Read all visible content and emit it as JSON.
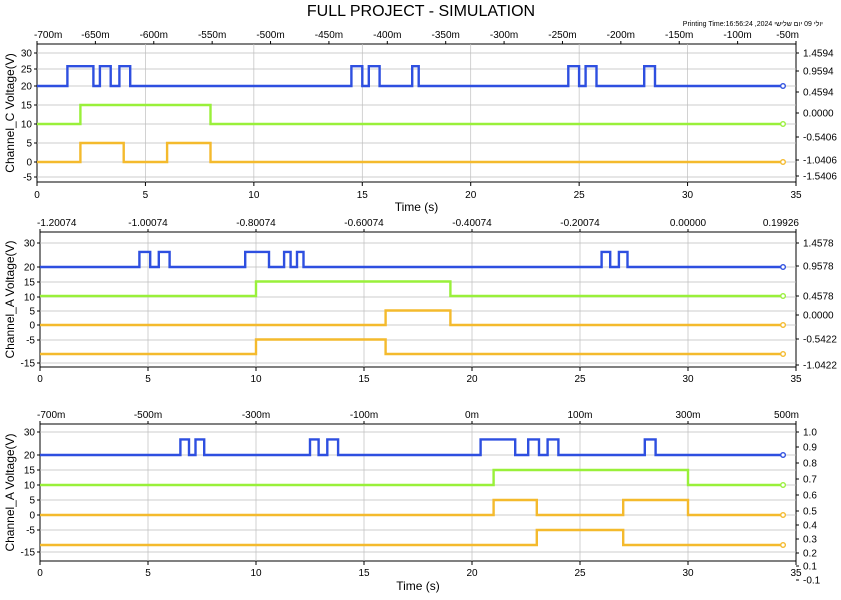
{
  "page": {
    "title": "FULL PROJECT - SIMULATION",
    "print_info": "Printing Time:16:56:24 ,2024 יולי 09 יום שלישי"
  },
  "colors": {
    "blue": "#2E4FE0",
    "green": "#99F03A",
    "orange": "#F4BA2D",
    "grid": "#BEBEBE",
    "frame": "#000000"
  },
  "chart_data": [
    {
      "type": "line",
      "subtype": "step",
      "ylabel": "Channel_C Voltage(V)",
      "xlabel": "Time (s)",
      "xlim": [
        0,
        35
      ],
      "x_ticks": [
        "0",
        "5",
        "10",
        "15",
        "20",
        "25",
        "30",
        "35"
      ],
      "ylim": [
        -8,
        32
      ],
      "y_ticks": [
        "30",
        "25",
        "20",
        "15",
        "10",
        "5",
        "0",
        "-5"
      ],
      "top_axis_ticks": [
        "-700m",
        "-650m",
        "-600m",
        "-550m",
        "-500m",
        "-450m",
        "-400m",
        "-350m",
        "-300m",
        "-250m",
        "-200m",
        "-150m",
        "-100m",
        "-50m"
      ],
      "right_axis_ticks": [
        "1.4594",
        "0.9594",
        "0.4594",
        "0.0000",
        "-0.5406",
        "-1.0406",
        "-1.5406"
      ],
      "grid": true,
      "series": [
        {
          "color": "blue",
          "points": [
            [
              0,
              20
            ],
            [
              1.4,
              20
            ],
            [
              1.4,
              25.2
            ],
            [
              2.6,
              25.2
            ],
            [
              2.6,
              20
            ],
            [
              2.9,
              20
            ],
            [
              2.9,
              25.2
            ],
            [
              3.4,
              25.2
            ],
            [
              3.4,
              20
            ],
            [
              3.8,
              20
            ],
            [
              3.8,
              25.2
            ],
            [
              4.3,
              25.2
            ],
            [
              4.3,
              20
            ],
            [
              14.5,
              20
            ],
            [
              14.5,
              25.2
            ],
            [
              15,
              25.2
            ],
            [
              15,
              20
            ],
            [
              15.3,
              20
            ],
            [
              15.3,
              25.2
            ],
            [
              15.8,
              25.2
            ],
            [
              15.8,
              20
            ],
            [
              17.3,
              20
            ],
            [
              17.3,
              25.2
            ],
            [
              17.6,
              25.2
            ],
            [
              17.6,
              20
            ],
            [
              24.5,
              20
            ],
            [
              24.5,
              25.2
            ],
            [
              25,
              25.2
            ],
            [
              25,
              20
            ],
            [
              25.3,
              20
            ],
            [
              25.3,
              25.2
            ],
            [
              25.8,
              25.2
            ],
            [
              25.8,
              20
            ],
            [
              28,
              20
            ],
            [
              28,
              25.2
            ],
            [
              28.5,
              25.2
            ],
            [
              28.5,
              20
            ],
            [
              34.4,
              20
            ]
          ]
        },
        {
          "color": "green",
          "points": [
            [
              0,
              10
            ],
            [
              2,
              10
            ],
            [
              2,
              15
            ],
            [
              8,
              15
            ],
            [
              8,
              10
            ],
            [
              34.4,
              10
            ]
          ]
        },
        {
          "color": "orange",
          "points": [
            [
              0,
              0
            ],
            [
              2,
              0
            ],
            [
              2,
              5
            ],
            [
              4,
              5
            ],
            [
              4,
              0
            ],
            [
              6,
              0
            ],
            [
              6,
              5
            ],
            [
              8,
              5
            ],
            [
              8,
              0
            ],
            [
              34.4,
              0
            ]
          ]
        }
      ]
    },
    {
      "type": "line",
      "subtype": "step",
      "ylabel": "Channel_A Voltage(V)",
      "xlabel": "",
      "xlim": [
        0,
        35
      ],
      "x_ticks": [
        "0",
        "5",
        "10",
        "15",
        "20",
        "25",
        "30",
        "35"
      ],
      "ylim": [
        -18,
        32
      ],
      "y_ticks": [
        "30",
        "20",
        "15",
        "10",
        "5",
        "0",
        "-5",
        "-15"
      ],
      "top_axis_ticks": [
        "-1.20074",
        "-1.00074",
        "-0.80074",
        "-0.60074",
        "-0.40074",
        "-0.20074",
        "0.00000",
        "0.19926"
      ],
      "right_axis_ticks": [
        "1.4578",
        "0.9578",
        "0.4578",
        "0.0000",
        "-0.5422",
        "-1.0422"
      ],
      "grid": true,
      "series": [
        {
          "color": "blue",
          "points": [
            [
              0,
              20
            ],
            [
              4.6,
              20
            ],
            [
              4.6,
              25.2
            ],
            [
              5.1,
              25.2
            ],
            [
              5.1,
              20
            ],
            [
              5.5,
              20
            ],
            [
              5.5,
              25.2
            ],
            [
              6,
              25.2
            ],
            [
              6,
              20
            ],
            [
              9.5,
              20
            ],
            [
              9.5,
              25.2
            ],
            [
              10.6,
              25.2
            ],
            [
              10.6,
              20
            ],
            [
              11.3,
              20
            ],
            [
              11.3,
              25.2
            ],
            [
              11.6,
              25.2
            ],
            [
              11.6,
              20
            ],
            [
              11.9,
              20
            ],
            [
              11.9,
              25.2
            ],
            [
              12.2,
              25.2
            ],
            [
              12.2,
              20
            ],
            [
              26,
              20
            ],
            [
              26,
              25.2
            ],
            [
              26.4,
              25.2
            ],
            [
              26.4,
              20
            ],
            [
              26.8,
              20
            ],
            [
              26.8,
              25.2
            ],
            [
              27.2,
              25.2
            ],
            [
              27.2,
              20
            ],
            [
              34.4,
              20
            ]
          ]
        },
        {
          "color": "green",
          "points": [
            [
              0,
              10
            ],
            [
              10,
              10
            ],
            [
              10,
              15
            ],
            [
              19,
              15
            ],
            [
              19,
              10
            ],
            [
              34.4,
              10
            ]
          ]
        },
        {
          "color": "orange",
          "points": [
            [
              0,
              0
            ],
            [
              16,
              0
            ],
            [
              16,
              5
            ],
            [
              19,
              5
            ],
            [
              19,
              0
            ],
            [
              34.4,
              0
            ]
          ]
        },
        {
          "color": "orange",
          "points": [
            [
              0,
              -10
            ],
            [
              10,
              -10
            ],
            [
              10,
              -5
            ],
            [
              16,
              -5
            ],
            [
              16,
              -10
            ],
            [
              34.4,
              -10
            ]
          ]
        }
      ]
    },
    {
      "type": "line",
      "subtype": "step",
      "ylabel": "Channel_A Voltage(V)",
      "xlabel": "Time (s)",
      "xlim": [
        0,
        35
      ],
      "x_ticks": [
        "0",
        "5",
        "10",
        "15",
        "20",
        "25",
        "30",
        "35"
      ],
      "ylim": [
        -18,
        32
      ],
      "y_ticks": [
        "30",
        "20",
        "15",
        "10",
        "5",
        "0",
        "-5",
        "-15"
      ],
      "top_axis_ticks": [
        "-700m",
        "-500m",
        "-300m",
        "-100m",
        "0m",
        "100m",
        "300m",
        "500m"
      ],
      "right_axis_ticks": [
        "1.0",
        "0.9",
        "0.8",
        "0.7",
        "0.6",
        "0.5",
        "0.4",
        "0.3",
        "0.2",
        "0.1",
        "-0.1"
      ],
      "grid": true,
      "series": [
        {
          "color": "blue",
          "points": [
            [
              0,
              20
            ],
            [
              6.5,
              20
            ],
            [
              6.5,
              25.2
            ],
            [
              6.9,
              25.2
            ],
            [
              6.9,
              20
            ],
            [
              7.2,
              20
            ],
            [
              7.2,
              25.2
            ],
            [
              7.6,
              25.2
            ],
            [
              7.6,
              20
            ],
            [
              12.5,
              20
            ],
            [
              12.5,
              25.2
            ],
            [
              12.9,
              25.2
            ],
            [
              12.9,
              20
            ],
            [
              13.3,
              20
            ],
            [
              13.3,
              25.2
            ],
            [
              13.8,
              25.2
            ],
            [
              13.8,
              20
            ],
            [
              20.4,
              20
            ],
            [
              20.4,
              25.2
            ],
            [
              22,
              25.2
            ],
            [
              22,
              20
            ],
            [
              22.6,
              20
            ],
            [
              22.6,
              25.2
            ],
            [
              23.1,
              25.2
            ],
            [
              23.1,
              20
            ],
            [
              23.5,
              20
            ],
            [
              23.5,
              25.2
            ],
            [
              24,
              25.2
            ],
            [
              24,
              20
            ],
            [
              28,
              20
            ],
            [
              28,
              25.2
            ],
            [
              28.5,
              25.2
            ],
            [
              28.5,
              20
            ],
            [
              34.4,
              20
            ]
          ]
        },
        {
          "color": "green",
          "points": [
            [
              0,
              10
            ],
            [
              21,
              10
            ],
            [
              21,
              15
            ],
            [
              30,
              15
            ],
            [
              30,
              10
            ],
            [
              34.4,
              10
            ]
          ]
        },
        {
          "color": "orange",
          "points": [
            [
              0,
              0
            ],
            [
              21,
              0
            ],
            [
              21,
              5
            ],
            [
              23,
              5
            ],
            [
              23,
              0
            ],
            [
              27,
              0
            ],
            [
              27,
              5
            ],
            [
              30,
              5
            ],
            [
              30,
              0
            ],
            [
              34.4,
              0
            ]
          ]
        },
        {
          "color": "orange",
          "points": [
            [
              0,
              -10
            ],
            [
              23,
              -10
            ],
            [
              23,
              -5
            ],
            [
              27,
              -5
            ],
            [
              27,
              -10
            ],
            [
              34.4,
              -10
            ]
          ]
        }
      ]
    }
  ]
}
